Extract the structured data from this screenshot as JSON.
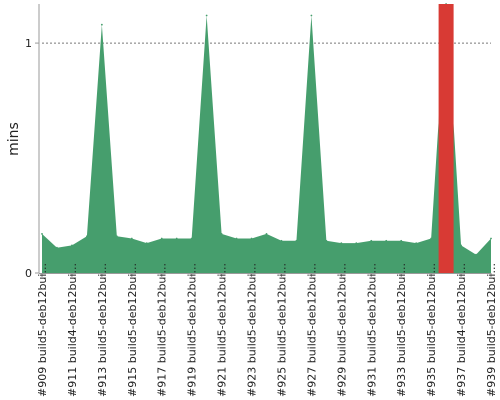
{
  "chart_data": {
    "type": "area",
    "ylabel": "mins",
    "ylim": [
      0,
      1.17
    ],
    "y_ticks": [
      0,
      1
    ],
    "y_tick_labels": [
      "0",
      "1"
    ],
    "reference_line": 1,
    "colors": {
      "area": "#469e6d",
      "failed": "#d83a34",
      "axis": "#9a9a9a",
      "grid": "#777777"
    },
    "x_tick_labels": [
      "#909 build5-deb12bui...",
      "#911 build4-deb12bui...",
      "#913 build5-deb12bui...",
      "#915 build5-deb12bui...",
      "#917 build5-deb12bui...",
      "#919 build5-deb12bui...",
      "#921 build5-deb12bui...",
      "#923 build5-deb12bui...",
      "#925 build5-deb12bui...",
      "#927 build5-deb12bui...",
      "#929 build5-deb12bui...",
      "#931 build5-deb12bui...",
      "#933 build5-deb12bui...",
      "#935 build5-deb12bui...",
      "#937 build4-deb12bui...",
      "#939 build5-deb12bui..."
    ],
    "builds": [
      909,
      910,
      911,
      912,
      913,
      914,
      915,
      916,
      917,
      918,
      919,
      920,
      921,
      922,
      923,
      924,
      925,
      926,
      927,
      928,
      929,
      930,
      931,
      932,
      933,
      934,
      935,
      936,
      937,
      938,
      939
    ],
    "values": [
      0.17,
      0.11,
      0.12,
      0.16,
      1.08,
      0.16,
      0.15,
      0.13,
      0.15,
      0.15,
      0.15,
      1.12,
      0.17,
      0.15,
      0.15,
      0.17,
      0.14,
      0.14,
      1.12,
      0.14,
      0.13,
      0.13,
      0.14,
      0.14,
      0.14,
      0.13,
      0.15,
      1.17,
      0.12,
      0.08,
      0.15
    ],
    "failed_builds": [
      936
    ]
  }
}
